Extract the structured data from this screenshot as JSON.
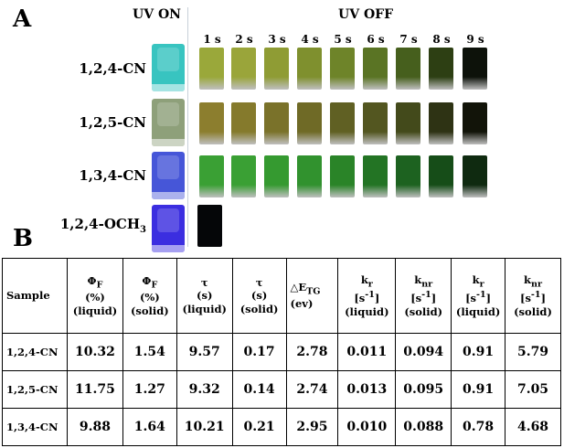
{
  "panel_a": {
    "letter": "A",
    "uv_on_label": "UV ON",
    "uv_off_label": "UV OFF",
    "time_labels": [
      "1 s",
      "2 s",
      "3 s",
      "4 s",
      "5 s",
      "6 s",
      "7 s",
      "8 s",
      "9 s"
    ],
    "samples": [
      {
        "label": "1,2,4-CN",
        "on_color": "#38c4c0",
        "off_colors": [
          "#9aa83a",
          "#9aa53a",
          "#8f9c34",
          "#7f902e",
          "#6e8429",
          "#5a7424",
          "#465f1d",
          "#2d3f13",
          "#0d120a"
        ]
      },
      {
        "label": "1,2,5-CN",
        "on_color": "#8ea07a",
        "off_colors": [
          "#8c7e2e",
          "#857a2c",
          "#7a722a",
          "#6f6a26",
          "#606023",
          "#535620",
          "#434a1b",
          "#2e3314",
          "#121409"
        ]
      },
      {
        "label": "1,3,4-CN",
        "on_color": "#4656d8",
        "off_colors": [
          "#3aa034",
          "#3aa034",
          "#359a30",
          "#31922e",
          "#2a8428",
          "#237424",
          "#1d6220",
          "#164d18",
          "#0f2a10"
        ]
      }
    ],
    "last_sample": {
      "label_main": "1,2,4-OCH",
      "label_sub": "3",
      "on_color": "#3b2ee0",
      "off_color": "#050608"
    }
  },
  "panel_b": {
    "letter": "B",
    "headers": [
      [
        "Sample"
      ],
      [
        "Φ_F",
        "(%)",
        "(liquid)"
      ],
      [
        "Φ_F",
        "(%)",
        "(solid)"
      ],
      [
        "τ",
        "(s)",
        "(liquid)"
      ],
      [
        "τ",
        "(s)",
        "(solid)"
      ],
      [
        "△E_TG",
        "(ev)"
      ],
      [
        "k_r",
        "[s^-1]",
        "(liquid)"
      ],
      [
        "k_nr",
        "[s^-1]",
        "(solid)"
      ],
      [
        "k_r",
        "[s^-1]",
        "(liquid)"
      ],
      [
        "k_nr",
        "[s^-1]",
        "(solid)"
      ]
    ],
    "header_cells": {
      "sample": "Sample",
      "phi_sym": "Φ",
      "phi_sub": "F",
      "percent": "(%)",
      "tau": "τ",
      "sec": "(s)",
      "delta_sym": "△E",
      "delta_sub": "TG",
      "ev": "(ev)",
      "k": "k",
      "r_sub": "r",
      "nr_sub": "nr",
      "s_pre": "[s",
      "s_sup": "-1",
      "s_post": "]",
      "liquid": "(liquid)",
      "solid": "(solid)"
    },
    "rows": [
      [
        "1,2,4-CN",
        "10.32",
        "1.54",
        "9.57",
        "0.17",
        "2.78",
        "0.011",
        "0.094",
        "0.91",
        "5.79"
      ],
      [
        "1,2,5-CN",
        "11.75",
        "1.27",
        "9.32",
        "0.14",
        "2.74",
        "0.013",
        "0.095",
        "0.91",
        "7.05"
      ],
      [
        "1,3,4-CN",
        "9.88",
        "1.64",
        "10.21",
        "0.21",
        "2.95",
        "0.010",
        "0.088",
        "0.78",
        "4.68"
      ]
    ]
  }
}
